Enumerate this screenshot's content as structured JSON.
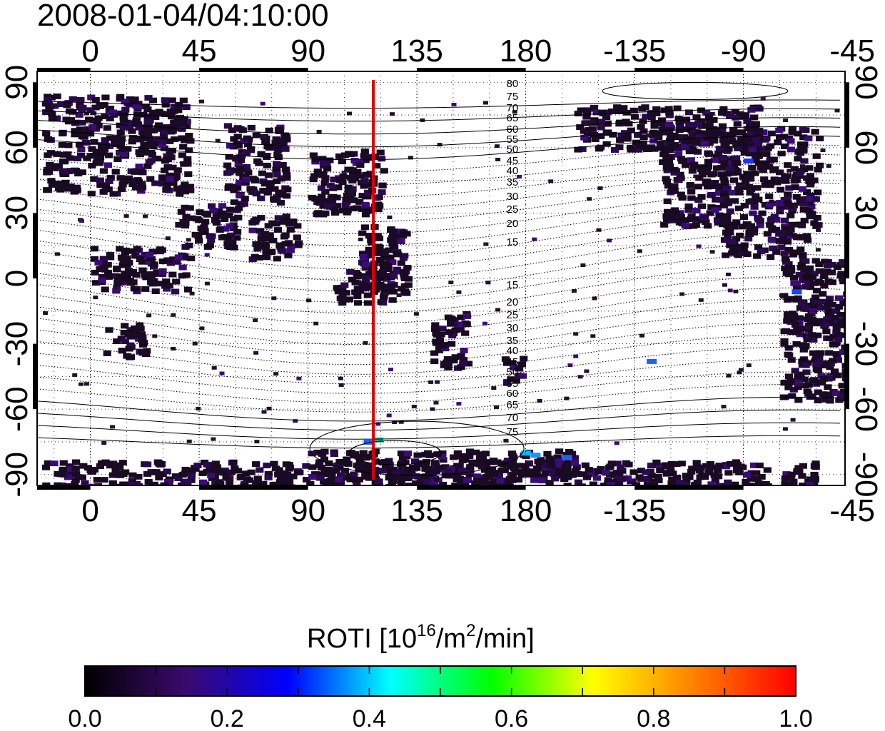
{
  "title": "2008-01-04/04:10:00",
  "map": {
    "lon_tick_labels": [
      "0",
      "45",
      "90",
      "135",
      "180",
      "-135",
      "-90",
      "-45"
    ],
    "lat_tick_labels": [
      "90",
      "60",
      "30",
      "0",
      "-30",
      "-60",
      "-90"
    ],
    "lon_range": [
      -22,
      312
    ],
    "lat_range": [
      -95,
      95
    ],
    "meridian_marker": {
      "lon": 117,
      "color": "#e00000"
    },
    "contour_labels_north": [
      "80",
      "75",
      "70",
      "65",
      "60",
      "55",
      "50",
      "45",
      "40",
      "35",
      "30",
      "25",
      "20",
      "15"
    ],
    "contour_labels_south": [
      "15",
      "20",
      "25",
      "30",
      "35",
      "40",
      "45",
      "50",
      "55",
      "60",
      "65",
      "70",
      "75"
    ]
  },
  "colorbar": {
    "label_main": "ROTI  [10",
    "label_exp1": "16",
    "label_mid": "/m",
    "label_exp2": "2",
    "label_end": "/min]",
    "tick_labels": [
      "0.0",
      "0.2",
      "0.4",
      "0.6",
      "0.8",
      "1.0"
    ],
    "range": [
      0.0,
      1.0
    ],
    "colors": [
      "#000000",
      "#3a0a6e",
      "#0000ff",
      "#00ffff",
      "#00ff00",
      "#ffff00",
      "#ff8000",
      "#ff0000"
    ]
  }
}
